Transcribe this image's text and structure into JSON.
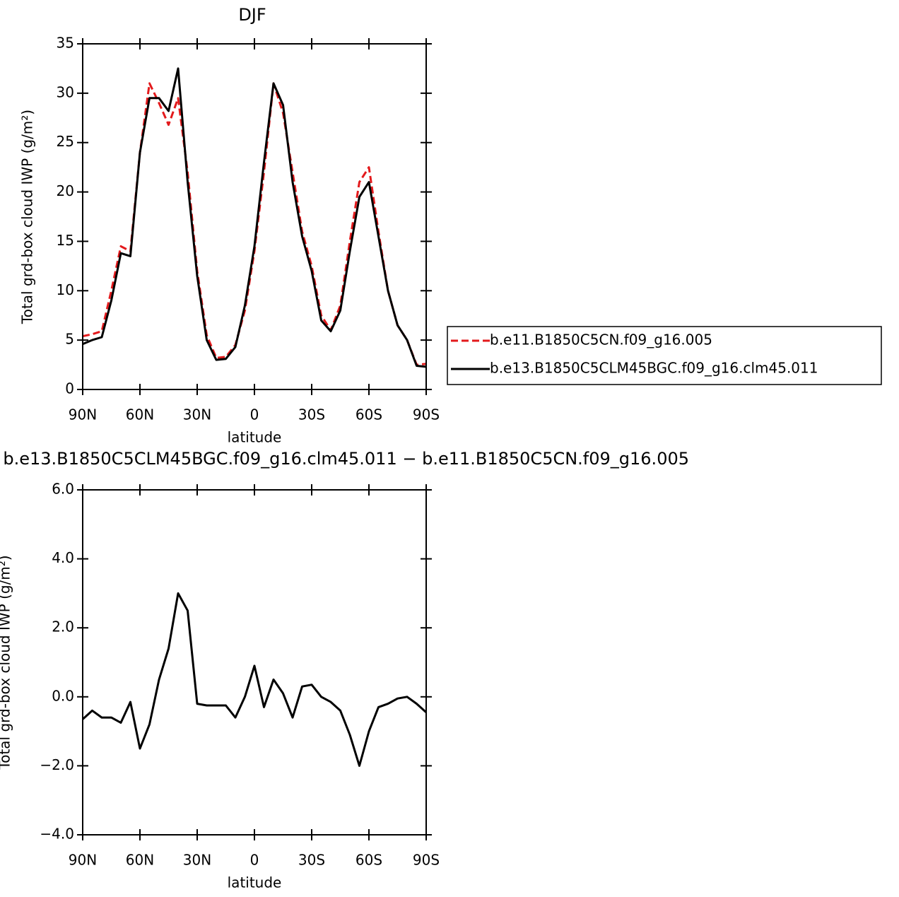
{
  "chart_data": [
    {
      "type": "line",
      "title": "DJF",
      "xlabel": "latitude",
      "ylabel": "Total grd-box cloud IWP (g/m²)",
      "x": [
        90,
        85,
        80,
        75,
        70,
        65,
        60,
        55,
        50,
        45,
        40,
        35,
        30,
        25,
        20,
        15,
        10,
        5,
        0,
        -5,
        -10,
        -15,
        -20,
        -25,
        -30,
        -35,
        -40,
        -45,
        -50,
        -55,
        -60,
        -65,
        -70,
        -75,
        -80,
        -85,
        -90
      ],
      "xlim": [
        90,
        -90
      ],
      "xticks": [
        {
          "value": 90,
          "label": "90N"
        },
        {
          "value": 60,
          "label": "60N"
        },
        {
          "value": 30,
          "label": "30N"
        },
        0,
        {
          "value": -30,
          "label": "30S"
        },
        {
          "value": -60,
          "label": "60S"
        },
        {
          "value": -90,
          "label": "90S"
        }
      ],
      "ylim": [
        0,
        35
      ],
      "yticks": [
        0,
        5,
        10,
        15,
        20,
        25,
        30,
        35
      ],
      "legend": "right",
      "series": [
        {
          "name": "b.e11.B1850C5CN.f09_g16.005",
          "color": "#e31a1c",
          "linestyle": "dashed",
          "values": [
            5.4,
            5.6,
            5.9,
            10,
            14.5,
            14,
            24,
            31,
            29,
            26.8,
            29.5,
            22,
            12,
            5.5,
            3.2,
            3.3,
            4.5,
            8,
            14,
            22,
            31,
            28,
            22,
            16,
            12.5,
            7.5,
            6,
            8.5,
            15,
            21,
            22.5,
            16,
            10,
            6.5,
            5,
            2.5,
            2.6
          ]
        },
        {
          "name": "b.e13.B1850C5CLM45BGC.f09_g16.clm45.011",
          "color": "#000000",
          "linestyle": "solid",
          "values": [
            4.6,
            5.0,
            5.3,
            9,
            13.8,
            13.5,
            24,
            29.5,
            29.5,
            28.2,
            32.5,
            21,
            11.5,
            5,
            3.0,
            3.1,
            4.3,
            8.5,
            14.5,
            23,
            31,
            28.8,
            21,
            15.5,
            12,
            7,
            5.9,
            8,
            14,
            19.5,
            21,
            15.5,
            10,
            6.5,
            5,
            2.4,
            2.3
          ]
        }
      ]
    },
    {
      "type": "line",
      "title": "b.e13.B1850C5CLM45BGC.f09_g16.clm45.011 − b.e11.B1850C5CN.f09_g16.005",
      "xlabel": "latitude",
      "ylabel": "Total grd-box cloud IWP (g/m²)",
      "x": [
        90,
        85,
        80,
        75,
        70,
        65,
        60,
        55,
        50,
        45,
        40,
        35,
        30,
        25,
        20,
        15,
        10,
        5,
        0,
        -5,
        -10,
        -15,
        -20,
        -25,
        -30,
        -35,
        -40,
        -45,
        -50,
        -55,
        -60,
        -65,
        -70,
        -75,
        -80,
        -85,
        -90
      ],
      "xlim": [
        90,
        -90
      ],
      "xticks": [
        {
          "value": 90,
          "label": "90N"
        },
        {
          "value": 60,
          "label": "60N"
        },
        {
          "value": 30,
          "label": "30N"
        },
        0,
        {
          "value": -30,
          "label": "30S"
        },
        {
          "value": -60,
          "label": "60S"
        },
        {
          "value": -90,
          "label": "90S"
        }
      ],
      "ylim": [
        -4,
        6
      ],
      "yticks": [
        {
          "value": -4,
          "label": "−4.0"
        },
        {
          "value": -2,
          "label": "−2.0"
        },
        {
          "value": 0,
          "label": "0.0"
        },
        {
          "value": 2,
          "label": "2.0"
        },
        {
          "value": 4,
          "label": "4.0"
        },
        {
          "value": 6,
          "label": "6.0"
        }
      ],
      "series": [
        {
          "color": "#000000",
          "linestyle": "solid",
          "values": [
            -0.65,
            -0.4,
            -0.6,
            -0.6,
            -0.75,
            -0.15,
            -1.5,
            -0.8,
            0.5,
            1.4,
            3.0,
            2.5,
            -0.2,
            -0.25,
            -0.25,
            -0.25,
            -0.6,
            0,
            0.9,
            -0.3,
            0.5,
            0.1,
            -0.6,
            0.3,
            0.35,
            0,
            -0.15,
            -0.4,
            -1.1,
            -2.0,
            -1.0,
            -0.3,
            -0.2,
            -0.05,
            0,
            -0.2,
            -0.45
          ]
        }
      ]
    }
  ]
}
